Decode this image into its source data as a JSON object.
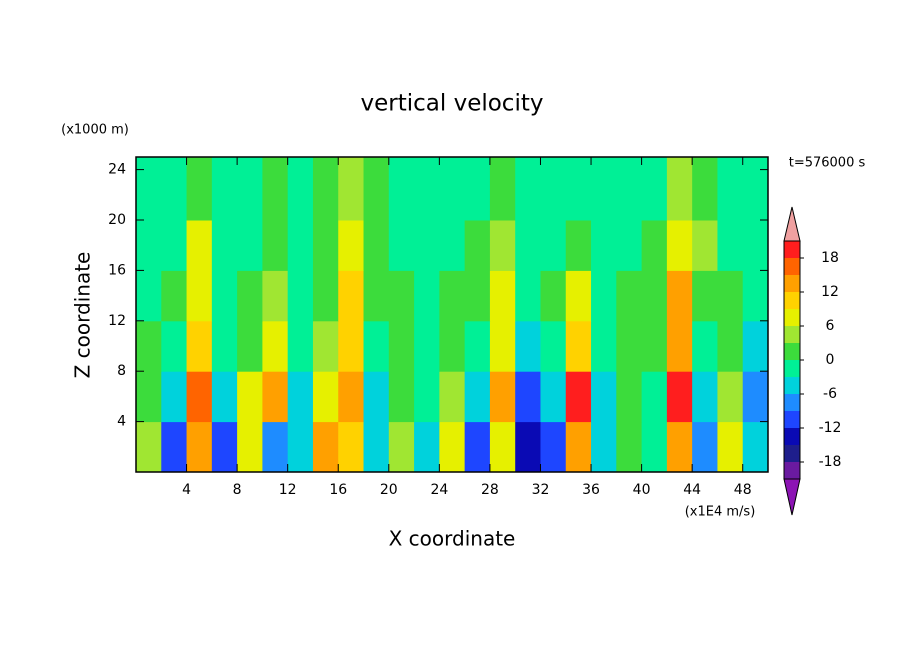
{
  "chart_data": {
    "type": "contour",
    "title": "vertical velocity",
    "x_label": "X coordinate",
    "y_label": "Z coordinate",
    "x_unit": "(x1E4 m/s)",
    "y_unit": "(x1000 m)",
    "annotation": "t=576000 s",
    "xlim": [
      0,
      50
    ],
    "ylim": [
      0,
      25
    ],
    "xticks": [
      4,
      8,
      12,
      16,
      20,
      24,
      28,
      32,
      36,
      40,
      44,
      48
    ],
    "yticks": [
      4,
      8,
      12,
      16,
      20,
      24
    ],
    "x": [
      1,
      3,
      5,
      7,
      9,
      11,
      13,
      15,
      17,
      19,
      21,
      23,
      25,
      27,
      29,
      31,
      33,
      35,
      37,
      39,
      41,
      43,
      45,
      47,
      49
    ],
    "z": [
      2,
      6,
      10,
      14,
      18,
      22
    ],
    "values": [
      [
        4,
        -12,
        14,
        -12,
        8,
        -8,
        -4,
        12,
        10,
        -6,
        4,
        -6,
        6,
        -10,
        8,
        -14,
        -10,
        14,
        -4,
        2,
        -2,
        12,
        -8,
        6,
        -6
      ],
      [
        2,
        -6,
        16,
        -6,
        6,
        12,
        -4,
        8,
        14,
        -4,
        2,
        -2,
        4,
        -6,
        12,
        -12,
        -6,
        18,
        -4,
        2,
        -2,
        18,
        -6,
        4,
        -8
      ],
      [
        0,
        -2,
        10,
        -2,
        2,
        6,
        -2,
        4,
        10,
        -2,
        0,
        -2,
        2,
        -2,
        8,
        -4,
        -2,
        10,
        -2,
        0,
        2,
        12,
        -2,
        2,
        -4
      ],
      [
        -2,
        0,
        8,
        -2,
        0,
        4,
        -2,
        2,
        10,
        0,
        0,
        -2,
        2,
        0,
        6,
        -2,
        0,
        6,
        -2,
        0,
        2,
        14,
        2,
        0,
        -2
      ],
      [
        -2,
        -1,
        6,
        -1,
        -1,
        2,
        -1,
        2,
        8,
        2,
        -1,
        -1,
        -1,
        2,
        4,
        -1,
        -1,
        2,
        -1,
        -1,
        2,
        8,
        4,
        -1,
        -1
      ],
      [
        -2,
        -1,
        2,
        -1,
        -1,
        2,
        -1,
        2,
        4,
        2,
        -1,
        -1,
        -1,
        -1,
        2,
        -1,
        -1,
        -1,
        -1,
        -1,
        -1,
        4,
        2,
        -1,
        -1
      ]
    ],
    "levels": [
      -21,
      -18,
      -15,
      -12,
      -9,
      -6,
      -3,
      0,
      3,
      6,
      9,
      12,
      15,
      18,
      21
    ],
    "colors": [
      "#6a1aa0",
      "#1e1e8c",
      "#0a0ab4",
      "#1e46ff",
      "#1e8cff",
      "#00d2dc",
      "#00f096",
      "#3cdc3c",
      "#a0e632",
      "#e6f000",
      "#ffd200",
      "#ffa000",
      "#ff6400",
      "#ff1e1e"
    ],
    "extend_colors": [
      "#8c14b4",
      "#f0a0a0"
    ],
    "colorbar_ticks": [
      -18,
      -12,
      -6,
      0,
      6,
      12,
      18
    ]
  }
}
